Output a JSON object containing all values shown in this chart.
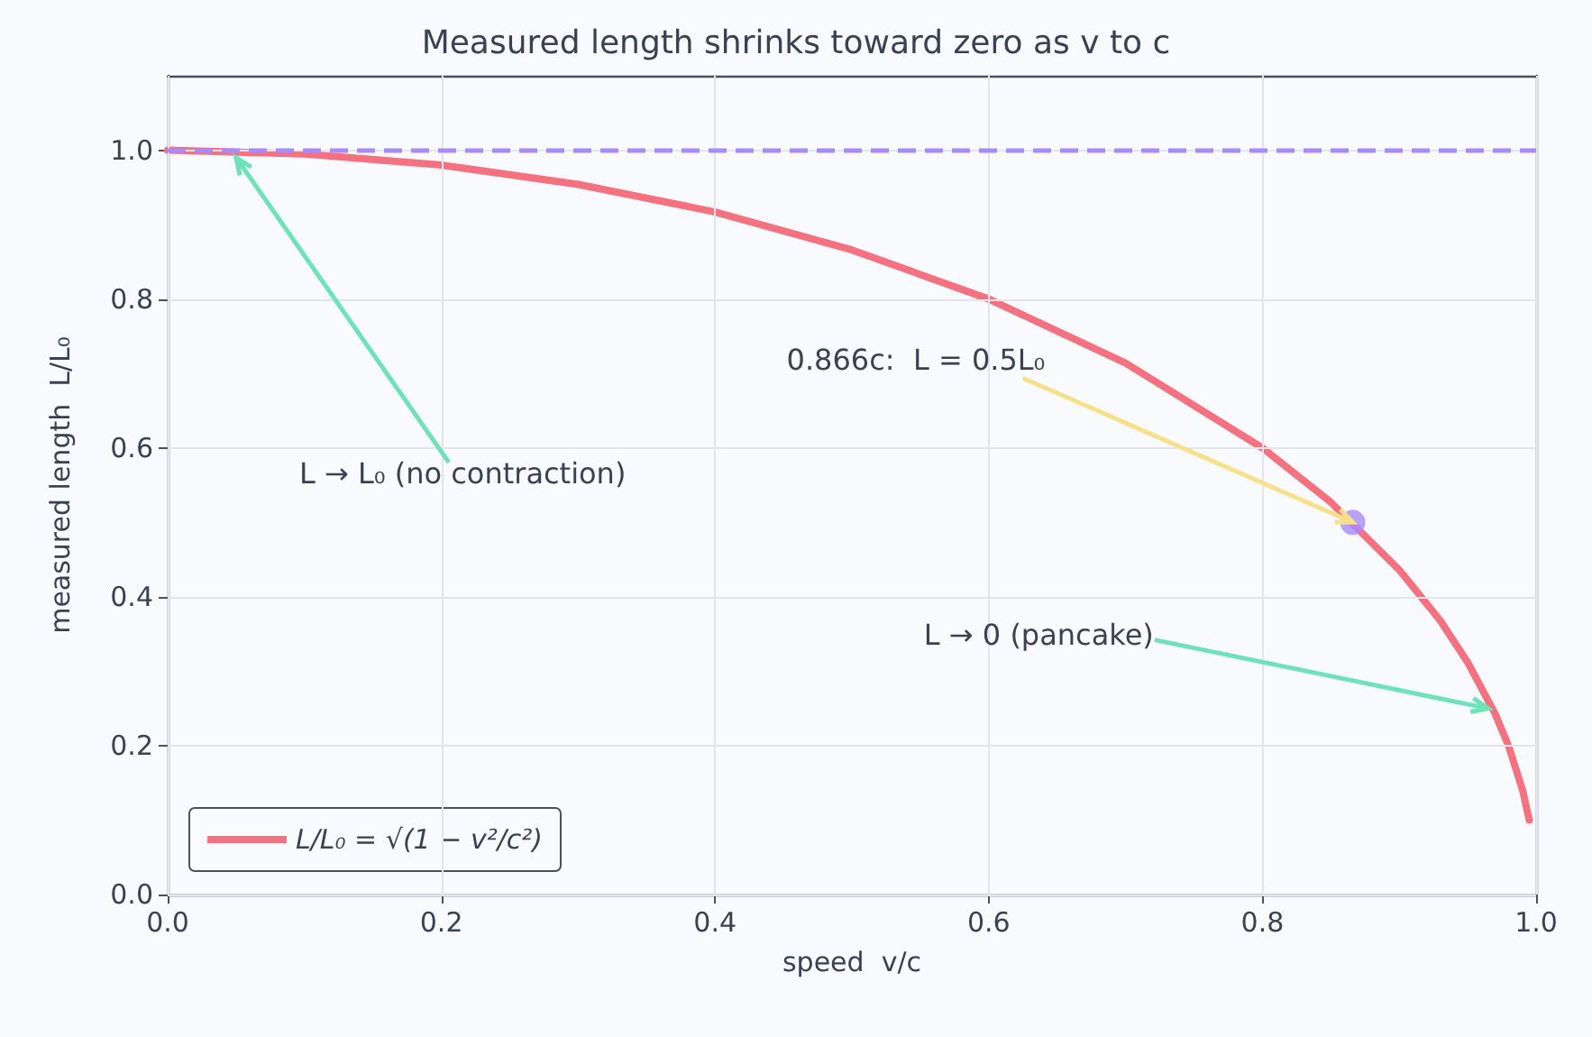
{
  "chart_data": {
    "type": "line",
    "title": "Measured length shrinks toward zero as v to c",
    "xlabel": "speed  v/c",
    "ylabel": "measured length  L/L₀",
    "series": [
      {
        "name": "L/L₀ = √(1 − v²/c²)",
        "color": "#f4717f",
        "x": [
          0,
          0.1,
          0.2,
          0.3,
          0.4,
          0.5,
          0.6,
          0.7,
          0.8,
          0.85,
          0.9,
          0.93,
          0.95,
          0.97,
          0.98,
          0.99,
          0.995
        ],
        "values": [
          1,
          0.995,
          0.98,
          0.954,
          0.917,
          0.866,
          0.8,
          0.714,
          0.6,
          0.527,
          0.436,
          0.368,
          0.312,
          0.243,
          0.199,
          0.141,
          0.1
        ],
        "marker": "none",
        "line_style": "solid"
      },
      {
        "type": "scatter",
        "color": "#a78bfa",
        "x": [
          0.866
        ],
        "values": [
          0.5
        ],
        "marker": "circle"
      }
    ],
    "ref_lines": [
      {
        "axis": "y",
        "value": 1,
        "color": "#a78bfa",
        "line_style": "dashed"
      }
    ],
    "annotations": [
      {
        "text": "0.866c:  L = 0.5L₀",
        "x": 0.866,
        "y": 0.5
      },
      {
        "text": "L → L₀ (no contraction)",
        "x": 0.05,
        "y": 0.99
      },
      {
        "text": "L → 0 (pancake)",
        "x": 0.965,
        "y": 0.25
      }
    ],
    "xlim": [
      0,
      1
    ],
    "ylim": [
      0,
      1.1
    ],
    "xticks": [
      {
        "value": 0,
        "label": "0.0"
      },
      {
        "value": 0.2,
        "label": "0.2"
      },
      {
        "value": 0.4,
        "label": "0.4"
      },
      {
        "value": 0.6,
        "label": "0.6"
      },
      {
        "value": 0.8,
        "label": "0.8"
      },
      {
        "value": 1,
        "label": "1.0"
      }
    ],
    "yticks": [
      {
        "value": 0,
        "label": "0.0"
      },
      {
        "value": 0.2,
        "label": "0.2"
      },
      {
        "value": 0.4,
        "label": "0.4"
      },
      {
        "value": 0.6,
        "label": "0.6"
      },
      {
        "value": 0.8,
        "label": "0.8"
      },
      {
        "value": 1,
        "label": "1.0"
      }
    ],
    "grid": true,
    "legend": "bottom left"
  }
}
